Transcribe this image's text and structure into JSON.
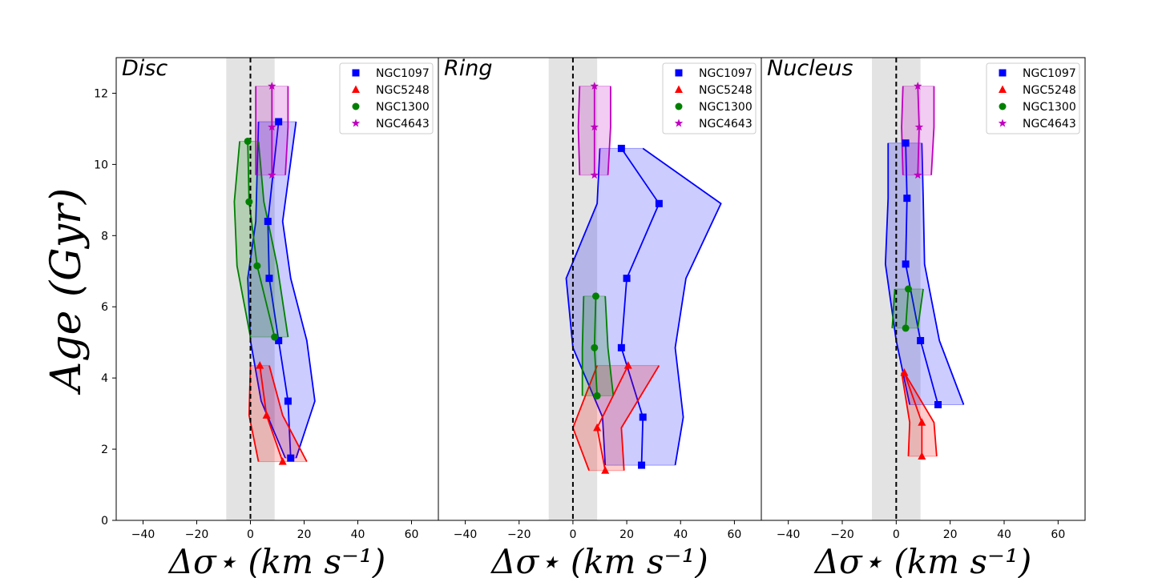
{
  "chart_data": [
    {
      "type": "line",
      "title": "Disc",
      "xlabel": "Δσ⋆ (km s⁻¹)",
      "ylabel": "Age (Gyr)",
      "xlim": [
        -50,
        70
      ],
      "ylim": [
        0,
        13
      ],
      "xticks": [
        -40,
        -20,
        0,
        20,
        40,
        60
      ],
      "yticks": [
        0,
        2,
        4,
        6,
        8,
        10,
        12
      ],
      "shaded_band_x": [
        -9,
        9
      ],
      "reference_line_x": 0,
      "legend": [
        "NGC1097",
        "NGC5248",
        "NGC1300",
        "NGC4643"
      ],
      "legend_position": "top-right",
      "series": [
        {
          "name": "NGC1097",
          "color": "#0000ff",
          "marker": "square",
          "x": [
            15,
            14,
            10.5,
            7,
            6.5,
            10.5
          ],
          "y": [
            1.75,
            3.35,
            5.05,
            6.8,
            8.4,
            11.2
          ],
          "lower": [
            13,
            4,
            0,
            -1,
            2,
            3
          ],
          "upper": [
            17,
            24,
            21,
            15,
            12,
            17
          ]
        },
        {
          "name": "NGC5248",
          "color": "#ff0000",
          "marker": "triangle",
          "x": [
            12,
            6,
            3.5
          ],
          "y": [
            1.65,
            2.95,
            4.35
          ],
          "lower": [
            3,
            -0.5,
            0
          ],
          "upper": [
            21,
            12,
            7
          ]
        },
        {
          "name": "NGC1300",
          "color": "#008000",
          "marker": "circle",
          "x": [
            9,
            2.5,
            -0.5,
            -1
          ],
          "y": [
            5.15,
            7.15,
            8.95,
            10.65
          ],
          "lower": [
            0,
            -5,
            -6,
            -4
          ],
          "upper": [
            14,
            10,
            5,
            3
          ]
        },
        {
          "name": "NGC4643",
          "color": "#bf00bf",
          "marker": "star",
          "x": [
            8,
            8,
            8
          ],
          "y": [
            9.7,
            11.05,
            12.2
          ],
          "lower": [
            2,
            2,
            2
          ],
          "upper": [
            13,
            14,
            14
          ]
        }
      ]
    },
    {
      "type": "line",
      "title": "Ring",
      "xlabel": "Δσ⋆ (km s⁻¹)",
      "ylabel": "",
      "xlim": [
        -50,
        70
      ],
      "ylim": [
        0,
        13
      ],
      "xticks": [
        -40,
        -20,
        0,
        20,
        40,
        60
      ],
      "yticks": [
        0,
        2,
        4,
        6,
        8,
        10,
        12
      ],
      "shaded_band_x": [
        -9,
        9
      ],
      "reference_line_x": 0,
      "legend": [
        "NGC1097",
        "NGC5248",
        "NGC1300",
        "NGC4643"
      ],
      "legend_position": "top-right",
      "series": [
        {
          "name": "NGC1097",
          "color": "#0000ff",
          "marker": "square",
          "x": [
            25.5,
            26,
            18,
            20,
            32,
            18
          ],
          "y": [
            1.55,
            2.9,
            4.85,
            6.8,
            8.9,
            10.45
          ],
          "lower": [
            12,
            11,
            0,
            -2.5,
            9,
            10
          ],
          "upper": [
            38,
            41,
            38,
            42,
            55,
            26
          ]
        },
        {
          "name": "NGC5248",
          "color": "#ff0000",
          "marker": "triangle",
          "x": [
            12,
            9,
            20.5
          ],
          "y": [
            1.4,
            2.6,
            4.35
          ],
          "lower": [
            6,
            0,
            9
          ],
          "upper": [
            19,
            18,
            32
          ]
        },
        {
          "name": "NGC1300",
          "color": "#008000",
          "marker": "circle",
          "x": [
            9,
            8,
            8.5
          ],
          "y": [
            3.5,
            4.85,
            6.3
          ],
          "lower": [
            3.5,
            3.5,
            4
          ],
          "upper": [
            15,
            13,
            12
          ]
        },
        {
          "name": "NGC4643",
          "color": "#bf00bf",
          "marker": "star",
          "x": [
            8,
            8,
            8
          ],
          "y": [
            9.7,
            11.05,
            12.2
          ],
          "lower": [
            2.5,
            2,
            2.5
          ],
          "upper": [
            13,
            14,
            14
          ]
        }
      ]
    },
    {
      "type": "line",
      "title": "Nucleus",
      "xlabel": "Δσ⋆ (km s⁻¹)",
      "ylabel": "",
      "xlim": [
        -50,
        70
      ],
      "ylim": [
        0,
        13
      ],
      "xticks": [
        -40,
        -20,
        0,
        20,
        40,
        60
      ],
      "yticks": [
        0,
        2,
        4,
        6,
        8,
        10,
        12
      ],
      "shaded_band_x": [
        -9,
        9
      ],
      "reference_line_x": 0,
      "legend": [
        "NGC1097",
        "NGC5248",
        "NGC1300",
        "NGC4643"
      ],
      "legend_position": "top-right",
      "series": [
        {
          "name": "NGC1097",
          "color": "#0000ff",
          "marker": "square",
          "x": [
            15.5,
            9,
            3.5,
            4,
            3.5
          ],
          "y": [
            3.25,
            5.05,
            7.2,
            9.05,
            10.6
          ],
          "lower": [
            5,
            0,
            -4,
            -3,
            -3
          ],
          "upper": [
            25,
            16,
            10.5,
            10,
            9.5
          ]
        },
        {
          "name": "NGC5248",
          "color": "#ff0000",
          "marker": "triangle",
          "x": [
            9.5,
            9.5,
            3
          ],
          "y": [
            1.8,
            2.75,
            4.15
          ],
          "lower": [
            4.5,
            5,
            2
          ],
          "upper": [
            15,
            14,
            3
          ]
        },
        {
          "name": "NGC1300",
          "color": "#008000",
          "marker": "circle",
          "x": [
            3.5,
            4.5
          ],
          "y": [
            5.4,
            6.5
          ],
          "lower": [
            -1.5,
            -0.5
          ],
          "upper": [
            8,
            10
          ]
        },
        {
          "name": "NGC4643",
          "color": "#bf00bf",
          "marker": "star",
          "x": [
            8,
            8.5,
            8
          ],
          "y": [
            9.7,
            11.05,
            12.2
          ],
          "lower": [
            2.5,
            2,
            2.5
          ],
          "upper": [
            13,
            14,
            14
          ]
        }
      ]
    }
  ]
}
